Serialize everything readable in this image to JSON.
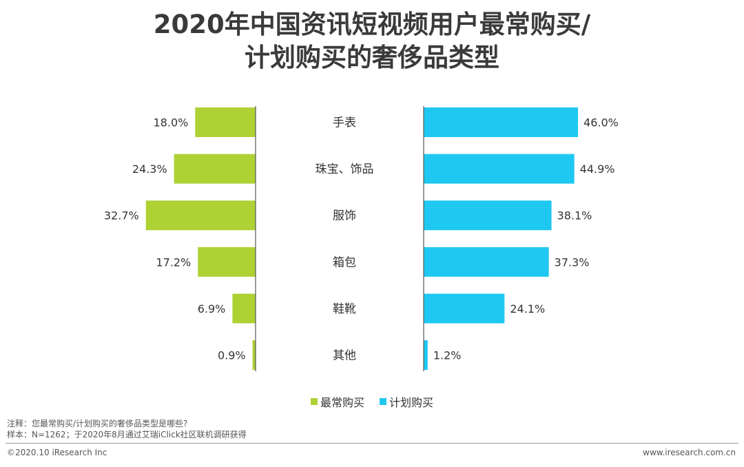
{
  "title_line1": "2020年中国资讯短视频用户最常购买/",
  "title_line2": "计划购买的奢侈品类型",
  "colors": {
    "most": "#aed134",
    "plan": "#1ec8f1",
    "axis": "#555555"
  },
  "chart_data": {
    "type": "bar",
    "categories": [
      "手表",
      "珠宝、饰品",
      "服饰",
      "箱包",
      "鞋靴",
      "其他"
    ],
    "series": [
      {
        "name": "最常购买",
        "values": [
          18.0,
          24.3,
          32.7,
          17.2,
          6.9,
          0.9
        ]
      },
      {
        "name": "计划购买",
        "values": [
          46.0,
          44.9,
          38.1,
          37.3,
          24.1,
          1.2
        ]
      }
    ],
    "value_labels": {
      "most": [
        "18.0%",
        "24.3%",
        "32.7%",
        "17.2%",
        "6.9%",
        "0.9%"
      ],
      "plan": [
        "46.0%",
        "44.9%",
        "38.1%",
        "37.3%",
        "24.1%",
        "1.2%"
      ]
    },
    "legend_position": "bottom"
  },
  "legend": {
    "most": "最常购买",
    "plan": "计划购买"
  },
  "notes": {
    "note": "注释：您最常购买/计划购买的奢侈品类型是哪些?",
    "sample": "样本：N=1262；于2020年8月通过艾瑞iClick社区联机调研获得"
  },
  "footer": {
    "copyright": "©2020.10 iResearch Inc",
    "site": "www.iresearch.com.cn"
  }
}
